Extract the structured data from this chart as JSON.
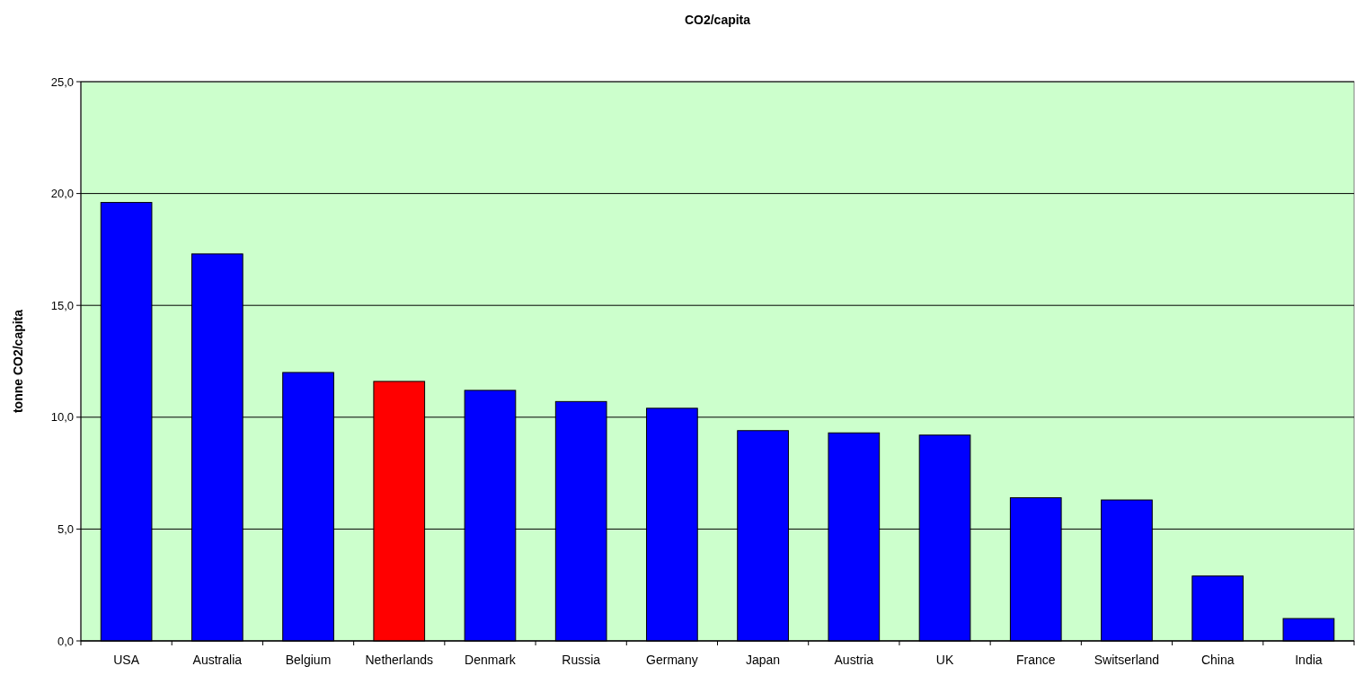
{
  "chart_data": {
    "type": "bar",
    "title": "CO2/capita",
    "ylabel": "tonne CO2/capita",
    "categories": [
      "USA",
      "Australia",
      "Belgium",
      "Netherlands",
      "Denmark",
      "Russia",
      "Germany",
      "Japan",
      "Austria",
      "UK",
      "France",
      "Switserland",
      "China",
      "India"
    ],
    "values": [
      19.6,
      17.3,
      12.0,
      11.6,
      11.2,
      10.7,
      10.4,
      9.4,
      9.3,
      9.2,
      6.4,
      6.3,
      2.9,
      1.0
    ],
    "colors": [
      "#0000ff",
      "#0000ff",
      "#0000ff",
      "#ff0000",
      "#0000ff",
      "#0000ff",
      "#0000ff",
      "#0000ff",
      "#0000ff",
      "#0000ff",
      "#0000ff",
      "#0000ff",
      "#0000ff",
      "#0000ff"
    ],
    "ylim": [
      0,
      25
    ],
    "yticks": [
      {
        "value": 0,
        "label": "0,0"
      },
      {
        "value": 5,
        "label": "5,0"
      },
      {
        "value": 10,
        "label": "10,0"
      },
      {
        "value": 15,
        "label": "15,0"
      },
      {
        "value": 20,
        "label": "20,0"
      },
      {
        "value": 25,
        "label": "25,0"
      }
    ],
    "grid": "y"
  }
}
